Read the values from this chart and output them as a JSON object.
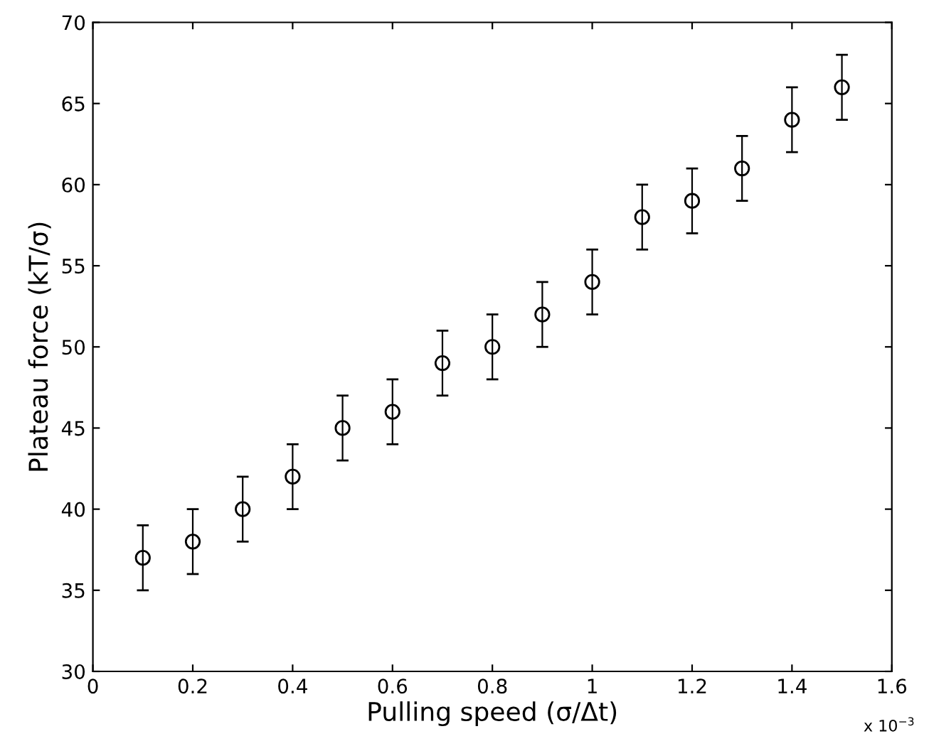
{
  "chart_data": {
    "type": "scatter",
    "xlabel": "Pulling speed (σ/Δt)",
    "ylabel": "Plateau force (kT/σ)",
    "x": [
      0.1,
      0.2,
      0.3,
      0.4,
      0.5,
      0.6,
      0.7,
      0.8,
      0.9,
      1.0,
      1.1,
      1.2,
      1.3,
      1.4,
      1.5
    ],
    "series": [
      {
        "color": "#000000",
        "values": [
          37,
          38,
          40,
          42,
          45,
          46,
          49,
          50,
          52,
          54,
          58,
          59,
          61,
          64,
          66
        ],
        "errors": [
          2,
          2,
          2,
          2,
          2,
          2,
          2,
          2,
          2,
          2,
          2,
          2,
          2,
          2,
          2
        ]
      }
    ],
    "marker": "circle",
    "xlim": [
      0,
      1.6
    ],
    "ylim": [
      30,
      70
    ],
    "xticks": [
      0,
      0.2,
      0.4,
      0.6,
      0.8,
      1,
      1.2,
      1.4,
      1.6
    ],
    "yticks": [
      30,
      35,
      40,
      45,
      50,
      55,
      60,
      65,
      70
    ],
    "annotations": [
      "x 10$^{−3}$"
    ],
    "grid": false,
    "legend": false
  }
}
